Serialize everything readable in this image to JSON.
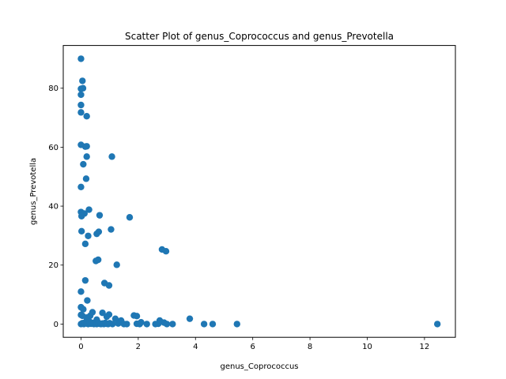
{
  "chart_data": {
    "type": "scatter",
    "title": "Scatter Plot of genus_Coprococcus and genus_Prevotella",
    "xlabel": "genus_Coprococcus",
    "ylabel": "genus_Prevotella",
    "xlim": [
      -0.62,
      13.08
    ],
    "ylim": [
      -4.5,
      94.5
    ],
    "xticks": [
      0,
      2,
      4,
      6,
      8,
      10,
      12
    ],
    "yticks": [
      0,
      20,
      40,
      60,
      80
    ],
    "grid": false,
    "legend": "none",
    "marker_color": "#1f77b4",
    "series": [
      {
        "x": [
          0.0,
          0.05,
          0.07,
          0.0,
          0.0,
          0.0,
          0.2,
          0.0,
          0.15,
          0.0,
          0.2,
          0.2,
          1.08,
          0.08,
          0.18,
          0.0,
          0.28,
          0.0,
          0.12,
          0.02,
          0.65,
          1.7,
          0.62,
          0.02,
          0.55,
          1.05,
          0.25,
          0.15,
          2.83,
          2.97,
          0.6,
          0.52,
          1.25,
          0.82,
          0.98,
          0.15,
          0.0,
          0.22,
          0.0,
          0.08,
          0.4,
          0.75,
          0.98,
          0.0,
          0.05,
          0.2,
          0.32,
          0.55,
          0.9,
          1.2,
          1.4,
          1.85,
          1.95,
          2.1,
          2.75,
          2.9,
          3.8,
          0.0,
          0.05,
          0.1,
          0.15,
          0.2,
          0.25,
          0.3,
          0.35,
          0.4,
          0.45,
          0.5,
          0.55,
          0.6,
          0.65,
          0.7,
          0.75,
          0.8,
          0.85,
          0.9,
          0.95,
          1.0,
          1.1,
          1.3,
          1.5,
          1.6,
          1.95,
          2.05,
          2.3,
          2.6,
          2.7,
          3.0,
          3.2,
          4.3,
          4.6,
          5.45,
          12.45
        ],
        "y": [
          90.0,
          82.5,
          80.0,
          79.8,
          77.8,
          74.3,
          70.5,
          71.8,
          60.2,
          60.8,
          60.3,
          56.8,
          56.8,
          54.2,
          49.3,
          46.5,
          38.8,
          38.0,
          37.5,
          36.6,
          36.9,
          36.2,
          31.3,
          31.5,
          30.6,
          32.1,
          29.9,
          27.2,
          25.3,
          24.7,
          21.8,
          21.4,
          20.1,
          13.9,
          13.1,
          14.8,
          11.0,
          8.0,
          5.7,
          5.0,
          4.0,
          3.8,
          3.2,
          3.1,
          2.8,
          2.2,
          2.8,
          1.5,
          2.5,
          1.8,
          1.2,
          2.9,
          2.7,
          0.6,
          1.2,
          0.5,
          1.8,
          0.0,
          0.3,
          0.0,
          0.6,
          0.2,
          0.0,
          0.8,
          0.1,
          0.4,
          0.0,
          0.3,
          0.0,
          0.5,
          0.1,
          0.0,
          0.2,
          0.0,
          0.4,
          0.1,
          0.0,
          0.3,
          0.0,
          0.2,
          0.0,
          0.0,
          0.1,
          0.0,
          0.0,
          0.0,
          0.1,
          0.0,
          0.0,
          0.0,
          0.0,
          0.0,
          0.0
        ]
      }
    ]
  }
}
